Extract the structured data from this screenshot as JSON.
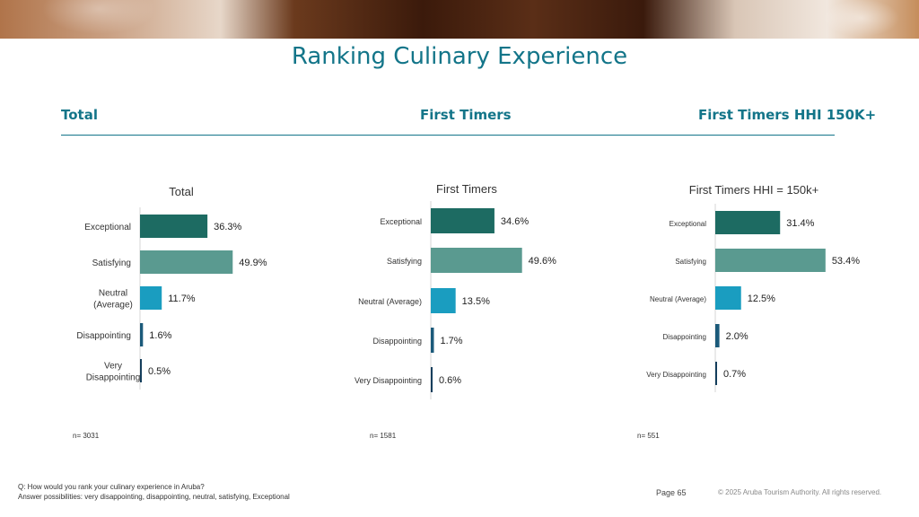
{
  "title": "Ranking Culinary Experience",
  "sections": [
    "Total",
    "First Timers",
    "First Timers HHI 150K+"
  ],
  "colors": {
    "accent": "#137589",
    "exceptional": "#1d6b62",
    "satisfying": "#5a9a90",
    "neutral": "#1a9dc0",
    "disappointing": "#1b5a7a",
    "very_disappointing": "#143e5c"
  },
  "chart_data": [
    {
      "type": "bar",
      "orientation": "horizontal",
      "title": "Total",
      "categories": [
        "Exceptional",
        "Satisfying",
        "Neutral (Average)",
        "Disappointing",
        "Very Disappointing"
      ],
      "values": [
        36.3,
        49.9,
        11.7,
        1.6,
        0.5
      ],
      "value_labels": [
        "36.3%",
        "49.9%",
        "11.7%",
        "1.6%",
        "0.5%"
      ],
      "n_label": "n= 3031"
    },
    {
      "type": "bar",
      "orientation": "horizontal",
      "title": "First Timers",
      "categories": [
        "Exceptional",
        "Satisfying",
        "Neutral (Average)",
        "Disappointing",
        "Very Disappointing"
      ],
      "values": [
        34.6,
        49.6,
        13.5,
        1.7,
        0.6
      ],
      "value_labels": [
        "34.6%",
        "49.6%",
        "13.5%",
        "1.7%",
        "0.6%"
      ],
      "n_label": "n= 1581"
    },
    {
      "type": "bar",
      "orientation": "horizontal",
      "title": "First Timers HHI = 150k+",
      "categories": [
        "Exceptional",
        "Satisfying",
        "Neutral (Average)",
        "Disappointing",
        "Very Disappointing"
      ],
      "values": [
        31.4,
        53.4,
        12.5,
        2.0,
        0.7
      ],
      "value_labels": [
        "31.4%",
        "53.4%",
        "12.5%",
        "2.0%",
        "0.7%"
      ],
      "n_label": "n= 551"
    }
  ],
  "footnote": {
    "question": "Q: How would you rank your culinary experience in Aruba?",
    "answers": "Answer possibilities: very disappointing, disappointing, neutral, satisfying, Exceptional"
  },
  "page_label": "Page 65",
  "copyright": "© 2025 Aruba Tourism Authority. All rights reserved."
}
